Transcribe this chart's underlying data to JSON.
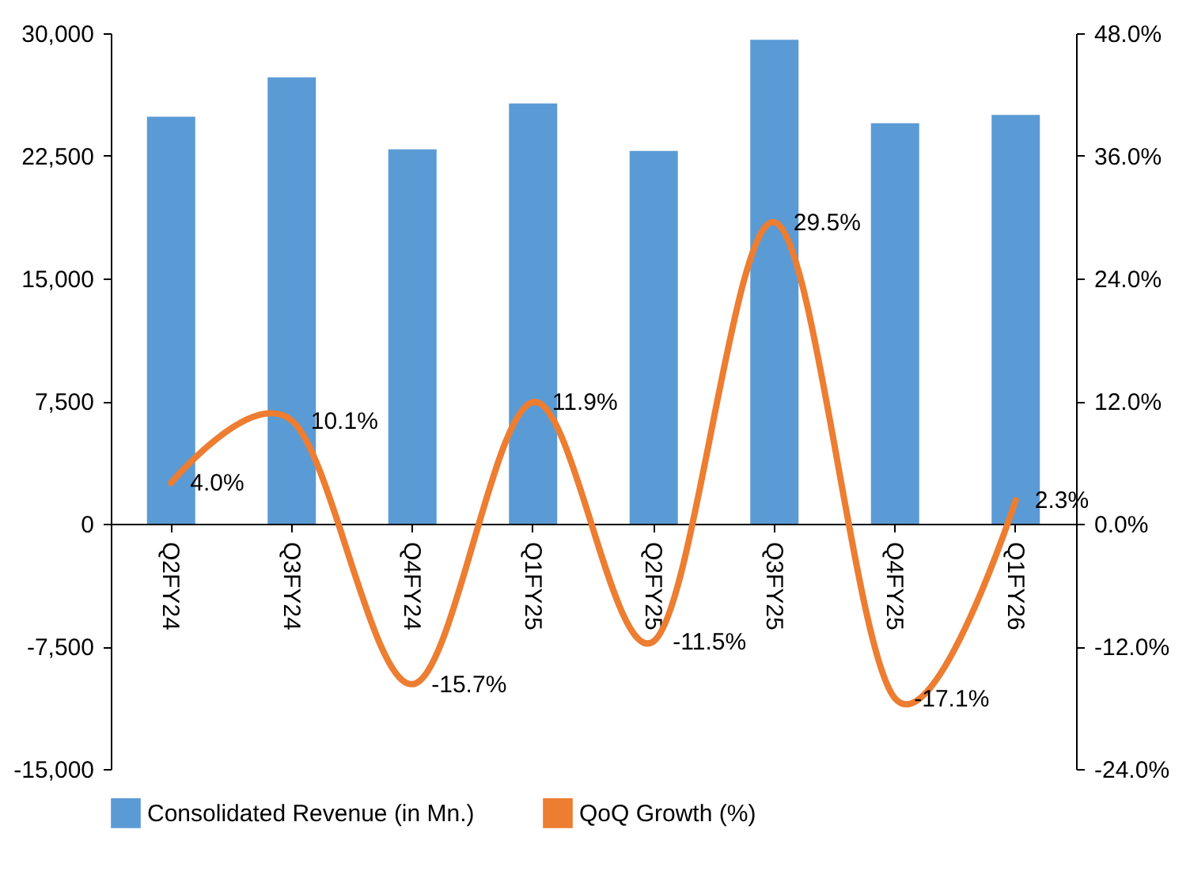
{
  "chart_data": {
    "type": "bar",
    "categories": [
      "Q2FY24",
      "Q3FY24",
      "Q4FY24",
      "Q1FY25",
      "Q2FY25",
      "Q3FY25",
      "Q4FY25",
      "Q1FY26"
    ],
    "series": [
      {
        "name": "Consolidated Revenue (in Mn.)",
        "color": "#5b9bd5",
        "values": [
          24900,
          27300,
          22900,
          25700,
          22800,
          29600,
          24500,
          25000
        ]
      },
      {
        "name": "QoQ Growth (%)",
        "type": "line",
        "axis": "y2",
        "color": "#ed7d31",
        "line_style": "solid",
        "values": [
          4.0,
          10.1,
          -15.7,
          11.9,
          -11.5,
          29.5,
          -17.1,
          2.3
        ],
        "value_labels": [
          "4.0%",
          "10.1%",
          "-15.7%",
          "11.9%",
          "-11.5%",
          "29.5%",
          "-17.1%",
          "2.3%"
        ]
      }
    ],
    "ylim": [
      -15000,
      30000
    ],
    "yticks": [
      {
        "value": -15000,
        "label": "-15,000"
      },
      {
        "value": -7500,
        "label": "-7,500"
      },
      0,
      {
        "value": 7500,
        "label": "7,500"
      },
      {
        "value": 15000,
        "label": "15,000"
      },
      {
        "value": 22500,
        "label": "22,500"
      },
      {
        "value": 30000,
        "label": "30,000"
      }
    ],
    "y2lim": [
      -24,
      48
    ],
    "y2ticks": [
      {
        "value": -24,
        "label": "-24.0%"
      },
      {
        "value": -12,
        "label": "-12.0%"
      },
      {
        "value": 0,
        "label": "0.0%"
      },
      {
        "value": 12,
        "label": "12.0%"
      },
      {
        "value": 24,
        "label": "24.0%"
      },
      {
        "value": 36,
        "label": "36.0%"
      },
      {
        "value": 48,
        "label": "48.0%"
      }
    ],
    "grid": false,
    "legend": "bottom"
  }
}
